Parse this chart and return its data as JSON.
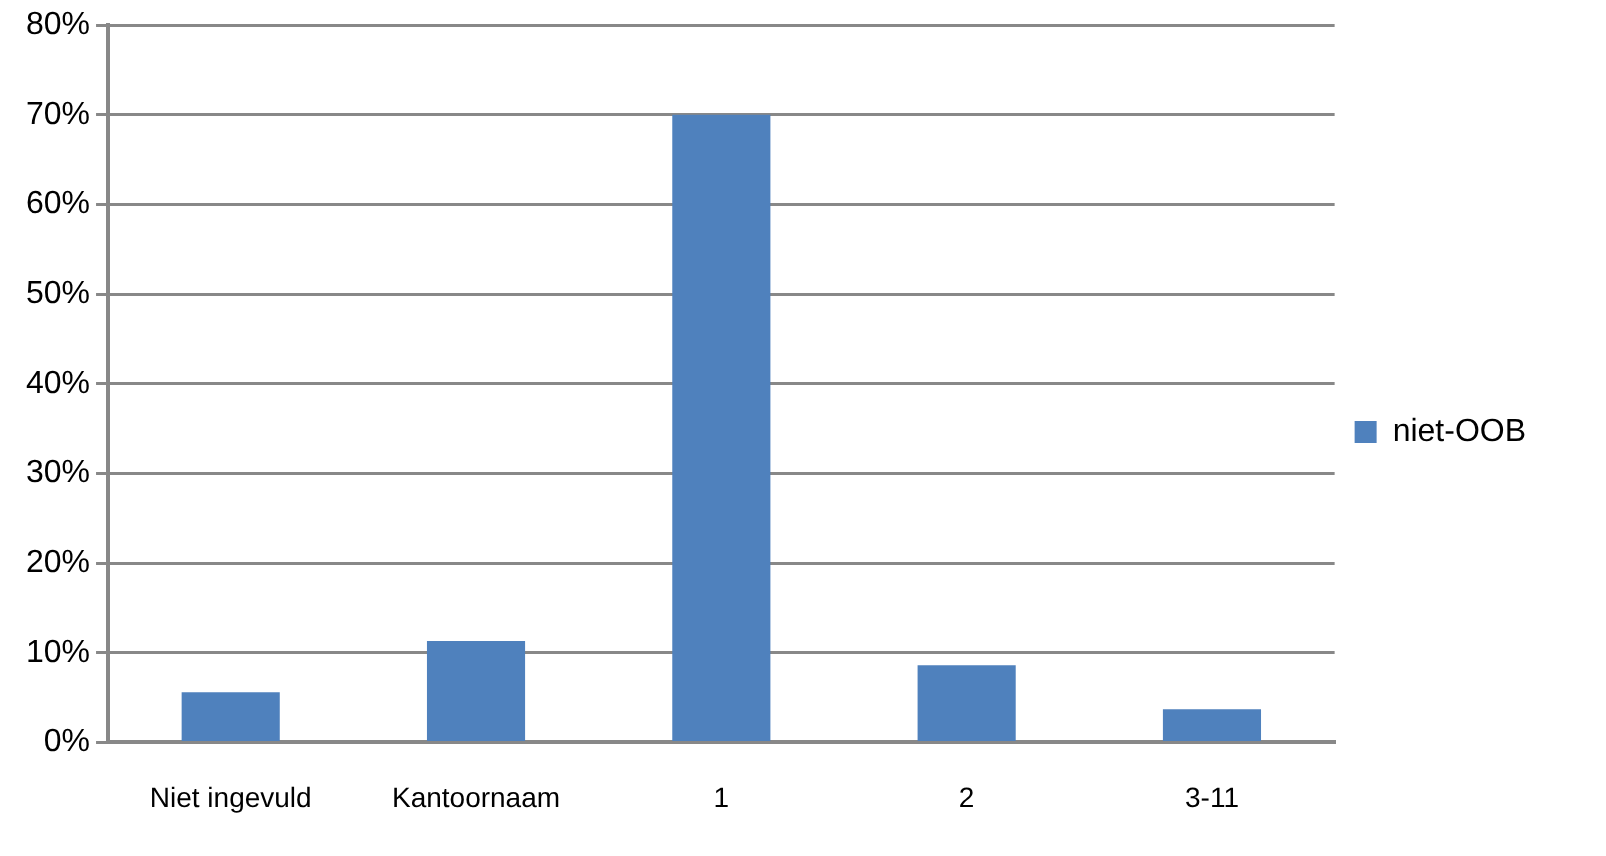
{
  "chart_data": {
    "type": "bar",
    "categories": [
      "Niet ingevuld",
      "Kantoornaam",
      "1",
      "2",
      "3-11"
    ],
    "series": [
      {
        "name": "niet-OOB",
        "color": "#4f81bd",
        "values": [
          5.6,
          11.3,
          70,
          8.6,
          3.7
        ]
      }
    ],
    "ylim": [
      0,
      80
    ],
    "yticks": [
      {
        "value": 0,
        "label": "0%"
      },
      {
        "value": 10,
        "label": "10%"
      },
      {
        "value": 20,
        "label": "20%"
      },
      {
        "value": 30,
        "label": "30%"
      },
      {
        "value": 40,
        "label": "40%"
      },
      {
        "value": 50,
        "label": "50%"
      },
      {
        "value": 60,
        "label": "60%"
      },
      {
        "value": 70,
        "label": "70%"
      },
      {
        "value": 80,
        "label": "80%"
      }
    ],
    "grid": "y",
    "legend": "right"
  }
}
